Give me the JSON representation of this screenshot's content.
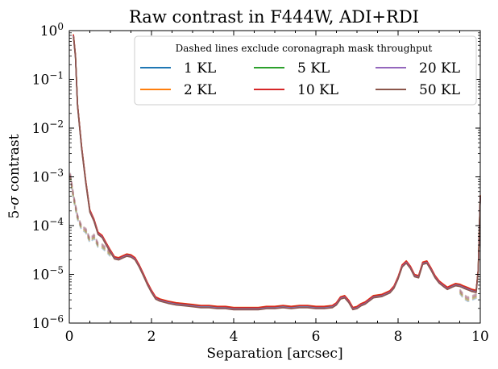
{
  "chart_data": {
    "type": "line",
    "title": "Raw contrast in F444W, ADI+RDI",
    "xlabel": "Separation [arcsec]",
    "ylabel_prefix": "5-",
    "ylabel_sigma": "σ",
    "ylabel_suffix": " contrast",
    "xlim": [
      0,
      10
    ],
    "ylim": [
      1e-06,
      1
    ],
    "yscale": "log",
    "xticks": [
      {
        "value": 0,
        "label": "0"
      },
      {
        "value": 2,
        "label": "2"
      },
      {
        "value": 4,
        "label": "4"
      },
      {
        "value": 6,
        "label": "6"
      },
      {
        "value": 8,
        "label": "8"
      },
      {
        "value": 10,
        "label": "10"
      }
    ],
    "yticks": [
      {
        "value": 1e-06,
        "base": "10",
        "exp": "−6"
      },
      {
        "value": 1e-05,
        "base": "10",
        "exp": "−5"
      },
      {
        "value": 0.0001,
        "base": "10",
        "exp": "−4"
      },
      {
        "value": 0.001,
        "base": "10",
        "exp": "−3"
      },
      {
        "value": 0.01,
        "base": "10",
        "exp": "−2"
      },
      {
        "value": 0.1,
        "base": "10",
        "exp": "−1"
      },
      {
        "value": 1,
        "base": "10",
        "exp": "0"
      }
    ],
    "legend": {
      "title": "Dashed lines exclude coronagraph mask throughput",
      "placement": "upper right",
      "columns": 3
    },
    "base_curve": {
      "x": [
        0.1,
        0.15,
        0.2,
        0.3,
        0.4,
        0.5,
        0.6,
        0.7,
        0.8,
        0.9,
        1.0,
        1.1,
        1.2,
        1.3,
        1.4,
        1.5,
        1.6,
        1.7,
        1.8,
        1.9,
        2.0,
        2.1,
        2.2,
        2.4,
        2.6,
        2.8,
        3.0,
        3.2,
        3.4,
        3.6,
        3.8,
        4.0,
        4.2,
        4.4,
        4.6,
        4.8,
        5.0,
        5.2,
        5.4,
        5.6,
        5.8,
        6.0,
        6.2,
        6.4,
        6.5,
        6.6,
        6.7,
        6.8,
        6.9,
        7.0,
        7.1,
        7.2,
        7.4,
        7.6,
        7.8,
        7.9,
        8.0,
        8.1,
        8.2,
        8.3,
        8.4,
        8.5,
        8.6,
        8.7,
        8.8,
        8.9,
        9.0,
        9.1,
        9.2,
        9.3,
        9.4,
        9.5,
        9.6,
        9.7,
        9.8,
        9.9,
        9.95,
        10.0
      ],
      "y": [
        0.8,
        0.3,
        0.03,
        0.004,
        0.0008,
        0.0002,
        0.00013,
        7e-05,
        6e-05,
        4.2e-05,
        3e-05,
        2.2e-05,
        2.1e-05,
        2.3e-05,
        2.5e-05,
        2.4e-05,
        2.1e-05,
        1.5e-05,
        1e-05,
        6.5e-06,
        4.5e-06,
        3.3e-06,
        3e-06,
        2.7e-06,
        2.5e-06,
        2.4e-06,
        2.3e-06,
        2.2e-06,
        2.2e-06,
        2.1e-06,
        2.1e-06,
        2e-06,
        2e-06,
        2e-06,
        2e-06,
        2.1e-06,
        2.1e-06,
        2.2e-06,
        2.1e-06,
        2.2e-06,
        2.2e-06,
        2.1e-06,
        2.1e-06,
        2.2e-06,
        2.5e-06,
        3.3e-06,
        3.5e-06,
        2.8e-06,
        2e-06,
        2.1e-06,
        2.4e-06,
        2.6e-06,
        3.5e-06,
        3.7e-06,
        4.4e-06,
        5.5e-06,
        8.5e-06,
        1.5e-05,
        1.8e-05,
        1.4e-05,
        9.5e-06,
        9e-06,
        1.7e-05,
        1.8e-05,
        1.3e-05,
        9e-06,
        7e-06,
        6e-06,
        5.2e-06,
        5.7e-06,
        6.2e-06,
        6e-06,
        5.5e-06,
        5.1e-06,
        4.7e-06,
        4.5e-06,
        1.2e-05,
        0.0004
      ]
    },
    "dashed_curve": {
      "x": [
        0.02,
        0.1,
        0.2,
        0.3,
        0.4,
        0.5,
        0.6,
        0.7,
        0.8,
        0.9,
        1.0
      ],
      "y": [
        0.0011,
        0.0004,
        0.00015,
        9e-05,
        8e-05,
        5e-05,
        6e-05,
        4e-05,
        3.8e-05,
        3.2e-05,
        2.6e-05
      ],
      "x_end": [
        9.5,
        9.6,
        9.7,
        9.8,
        9.9,
        9.95
      ],
      "y_end": [
        4.5e-06,
        3.5e-06,
        3.1e-06,
        3.3e-06,
        3.6e-06,
        3.7e-06
      ]
    },
    "series": [
      {
        "name": "1 KL",
        "color": "#1f77b4",
        "scale": 1.0
      },
      {
        "name": "2 KL",
        "color": "#ff7f0e",
        "scale": 1.05
      },
      {
        "name": "5 KL",
        "color": "#2ca02c",
        "scale": 1.02
      },
      {
        "name": "10 KL",
        "color": "#d62728",
        "scale": 1.04
      },
      {
        "name": "20 KL",
        "color": "#9467bd",
        "scale": 0.97
      },
      {
        "name": "50 KL",
        "color": "#8c564b",
        "scale": 0.94
      }
    ]
  }
}
